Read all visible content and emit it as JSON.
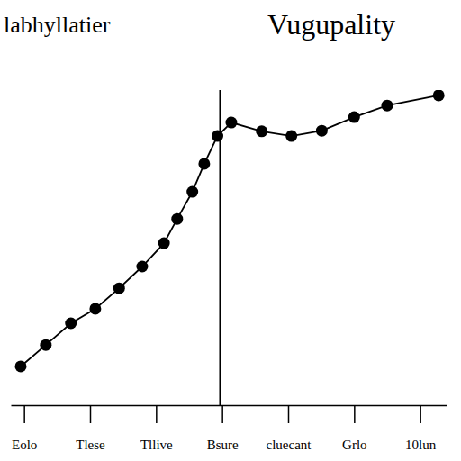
{
  "chart_data": {
    "type": "line",
    "title": "labhyllatier",
    "subtitle": "Vugupality",
    "x": [
      -0.05,
      0.33,
      0.71,
      1.08,
      1.44,
      1.79,
      2.12,
      2.32,
      2.55,
      2.73,
      2.93,
      3.14,
      3.6,
      4.05,
      4.51,
      5.0,
      5.5,
      6.28
    ],
    "values": [
      12.3,
      19.1,
      26,
      30.6,
      37.1,
      44,
      51.4,
      59.1,
      67.7,
      76.6,
      85.4,
      89.7,
      86.9,
      85.4,
      87.1,
      91.4,
      95.1,
      98.3
    ],
    "color": "#000000",
    "marker": "circle",
    "line_style": "solid",
    "xlim": [
      -0.2,
      6.4
    ],
    "xticks": [
      {
        "value": 0,
        "label": "Eolo"
      },
      {
        "value": 1,
        "label": "Tlese"
      },
      {
        "value": 2,
        "label": "Tllive"
      },
      {
        "value": 3,
        "label": "Bsure"
      },
      {
        "value": 4,
        "label": "cluecant"
      },
      {
        "value": 5,
        "label": "Grlo"
      },
      {
        "value": 6,
        "label": "10lun"
      }
    ],
    "ylim": [
      0,
      100
    ],
    "vline": 2.97,
    "tick_labels": "x",
    "grid": false
  }
}
